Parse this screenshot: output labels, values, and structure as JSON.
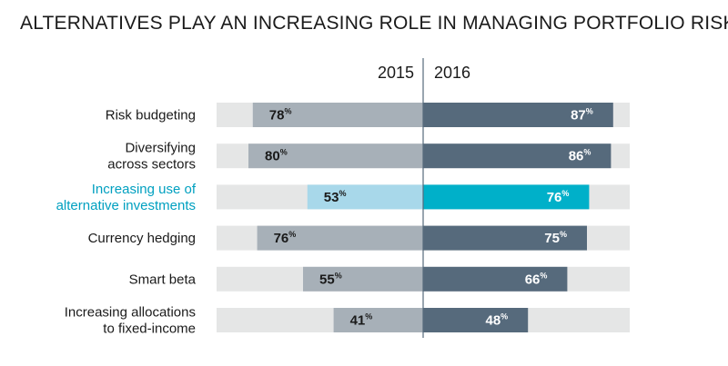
{
  "chart_data": {
    "type": "bar",
    "title": "ALTERNATIVES PLAY AN INCREASING ROLE IN MANAGING PORTFOLIO RISK",
    "subtitle": "",
    "xlabel": "",
    "ylabel": "",
    "xlim": [
      0,
      100
    ],
    "value_suffix": "%",
    "grid": false,
    "legend": "none",
    "highlight_category": "Increasing use of alternative investments",
    "categories": [
      {
        "label": [
          "Risk budgeting"
        ],
        "name": "Risk budgeting"
      },
      {
        "label": [
          "Diversifying",
          "across sectors"
        ],
        "name": "Diversifying across sectors"
      },
      {
        "label": [
          "Increasing use of",
          "alternative investments"
        ],
        "name": "Increasing use of alternative investments"
      },
      {
        "label": [
          "Currency hedging"
        ],
        "name": "Currency hedging"
      },
      {
        "label": [
          "Smart beta"
        ],
        "name": "Smart beta"
      },
      {
        "label": [
          "Increasing allocations",
          "to fixed-income"
        ],
        "name": "Increasing allocations to fixed-income"
      }
    ],
    "series": [
      {
        "name": "2015",
        "values": [
          78,
          80,
          53,
          76,
          55,
          41
        ]
      },
      {
        "name": "2016",
        "values": [
          87,
          86,
          76,
          75,
          66,
          48
        ]
      }
    ],
    "colors": {
      "track": "#e5e6e6",
      "bar_2015": "#a7b0b8",
      "bar_2016": "#566a7c",
      "highlight_2015": "#a8d8ea",
      "highlight_2016": "#00b0c9",
      "highlight_text": "#00a0c0",
      "label_text": "#1a1a1a",
      "axis_line": "#566a7c",
      "value_dark": "#1a1a1a",
      "value_light": "#ffffff"
    }
  }
}
